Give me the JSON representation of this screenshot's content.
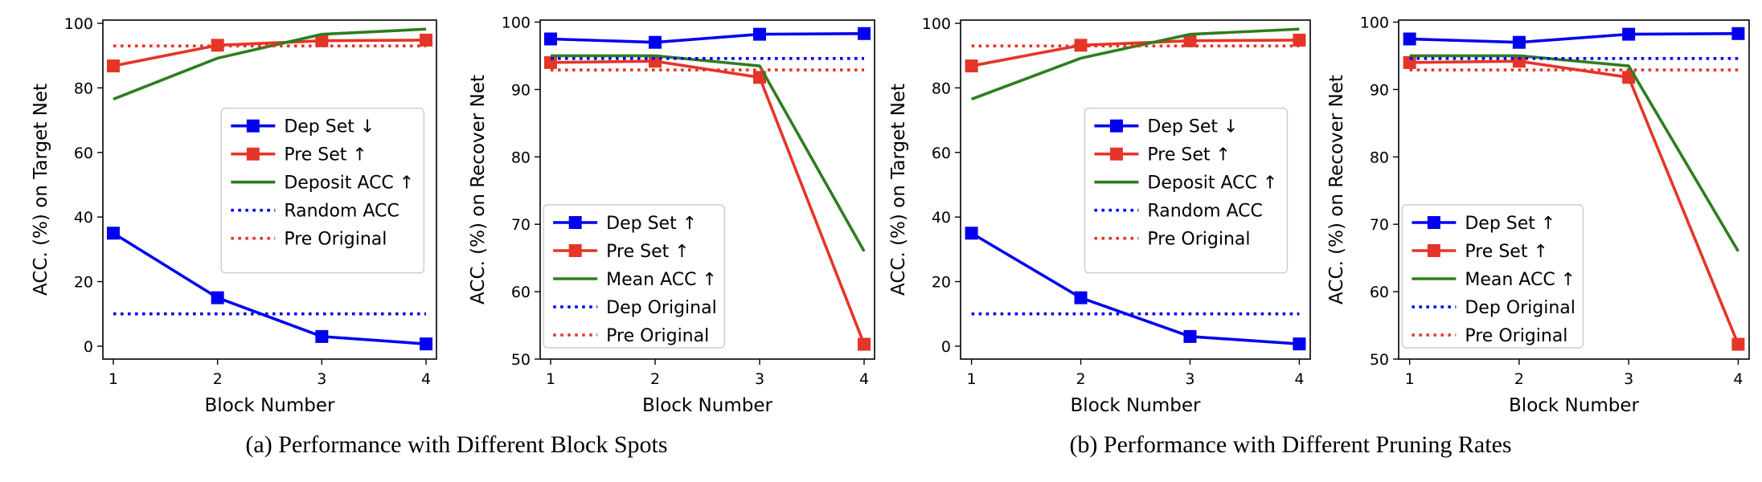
{
  "captions": [
    "(a) Performance with Different Block Spots",
    "(b) Performance with Different Pruning Rates"
  ],
  "colors": {
    "blue": "#0000ee",
    "red": "#e53528",
    "green": "#2e7d1f"
  },
  "chart_data": [
    {
      "type": "line",
      "group": 0,
      "xlabel": "Block Number",
      "ylabel": "ACC. (%) on Target Net",
      "x": [
        1,
        2,
        3,
        4
      ],
      "xlim": [
        0.9,
        4.1
      ],
      "ylim": [
        -4,
        101
      ],
      "yticks": [
        0,
        20,
        40,
        60,
        80,
        100
      ],
      "legend": "right",
      "series": [
        {
          "name": "Dep Set ↓",
          "color": "blue",
          "style": "solid",
          "marker": "square",
          "values": [
            35,
            15,
            3,
            0.7
          ]
        },
        {
          "name": "Pre Set ↑",
          "color": "red",
          "style": "solid",
          "marker": "square",
          "values": [
            86.8,
            93.2,
            94.6,
            94.8
          ]
        },
        {
          "name": "Deposit ACC ↑",
          "color": "green",
          "style": "solid",
          "marker": "none",
          "values": [
            76.5,
            89.2,
            96.6,
            98.2
          ]
        },
        {
          "name": "Random ACC",
          "color": "blue",
          "style": "dotted",
          "marker": "none",
          "values": [
            10,
            10,
            10,
            10
          ]
        },
        {
          "name": "Pre Original",
          "color": "red",
          "style": "dotted",
          "marker": "none",
          "values": [
            93,
            93,
            93,
            93
          ]
        }
      ]
    },
    {
      "type": "line",
      "group": 0,
      "xlabel": "Block Number",
      "ylabel": "ACC. (%) on Recover Net",
      "x": [
        1,
        2,
        3,
        4
      ],
      "xlim": [
        0.9,
        4.1
      ],
      "ylim": [
        50,
        100.3
      ],
      "yticks": [
        50,
        60,
        70,
        80,
        90,
        100
      ],
      "legend": "lower-left",
      "series": [
        {
          "name": "Dep Set ↑",
          "color": "blue",
          "style": "solid",
          "marker": "square",
          "values": [
            97.5,
            97,
            98.2,
            98.3
          ]
        },
        {
          "name": "Pre Set ↑",
          "color": "red",
          "style": "solid",
          "marker": "square",
          "values": [
            94,
            94.2,
            91.8,
            52.2
          ]
        },
        {
          "name": "Mean ACC ↑",
          "color": "green",
          "style": "solid",
          "marker": "none",
          "values": [
            95,
            95,
            93.5,
            66
          ]
        },
        {
          "name": "Dep Original",
          "color": "blue",
          "style": "dotted",
          "marker": "none",
          "values": [
            94.6,
            94.6,
            94.6,
            94.6
          ]
        },
        {
          "name": "Pre Original",
          "color": "red",
          "style": "dotted",
          "marker": "none",
          "values": [
            92.9,
            92.9,
            92.9,
            92.9
          ]
        }
      ]
    },
    {
      "type": "line",
      "group": 1,
      "xlabel": "Block Number",
      "ylabel": "ACC. (%) on Target Net",
      "x": [
        1,
        2,
        3,
        4
      ],
      "xlim": [
        0.9,
        4.1
      ],
      "ylim": [
        -4,
        101
      ],
      "yticks": [
        0,
        20,
        40,
        60,
        80,
        100
      ],
      "legend": "right",
      "series": [
        {
          "name": "Dep Set ↓",
          "color": "blue",
          "style": "solid",
          "marker": "square",
          "values": [
            35,
            15,
            3,
            0.7
          ]
        },
        {
          "name": "Pre Set ↑",
          "color": "red",
          "style": "solid",
          "marker": "square",
          "values": [
            86.8,
            93.2,
            94.6,
            94.8
          ]
        },
        {
          "name": "Deposit ACC ↑",
          "color": "green",
          "style": "solid",
          "marker": "none",
          "values": [
            76.5,
            89.2,
            96.6,
            98.2
          ]
        },
        {
          "name": "Random ACC",
          "color": "blue",
          "style": "dotted",
          "marker": "none",
          "values": [
            10,
            10,
            10,
            10
          ]
        },
        {
          "name": "Pre Original",
          "color": "red",
          "style": "dotted",
          "marker": "none",
          "values": [
            93,
            93,
            93,
            93
          ]
        }
      ]
    },
    {
      "type": "line",
      "group": 1,
      "xlabel": "Block Number",
      "ylabel": "ACC. (%) on Recover Net",
      "x": [
        1,
        2,
        3,
        4
      ],
      "xlim": [
        0.9,
        4.1
      ],
      "ylim": [
        50,
        100.3
      ],
      "yticks": [
        50,
        60,
        70,
        80,
        90,
        100
      ],
      "legend": "lower-left",
      "series": [
        {
          "name": "Dep Set ↑",
          "color": "blue",
          "style": "solid",
          "marker": "square",
          "values": [
            97.5,
            97,
            98.2,
            98.3
          ]
        },
        {
          "name": "Pre Set ↑",
          "color": "red",
          "style": "solid",
          "marker": "square",
          "values": [
            94,
            94.2,
            91.8,
            52.2
          ]
        },
        {
          "name": "Mean ACC ↑",
          "color": "green",
          "style": "solid",
          "marker": "none",
          "values": [
            95,
            95,
            93.5,
            66
          ]
        },
        {
          "name": "Dep Original",
          "color": "blue",
          "style": "dotted",
          "marker": "none",
          "values": [
            94.6,
            94.6,
            94.6,
            94.6
          ]
        },
        {
          "name": "Pre Original",
          "color": "red",
          "style": "dotted",
          "marker": "none",
          "values": [
            92.9,
            92.9,
            92.9,
            92.9
          ]
        }
      ]
    }
  ]
}
